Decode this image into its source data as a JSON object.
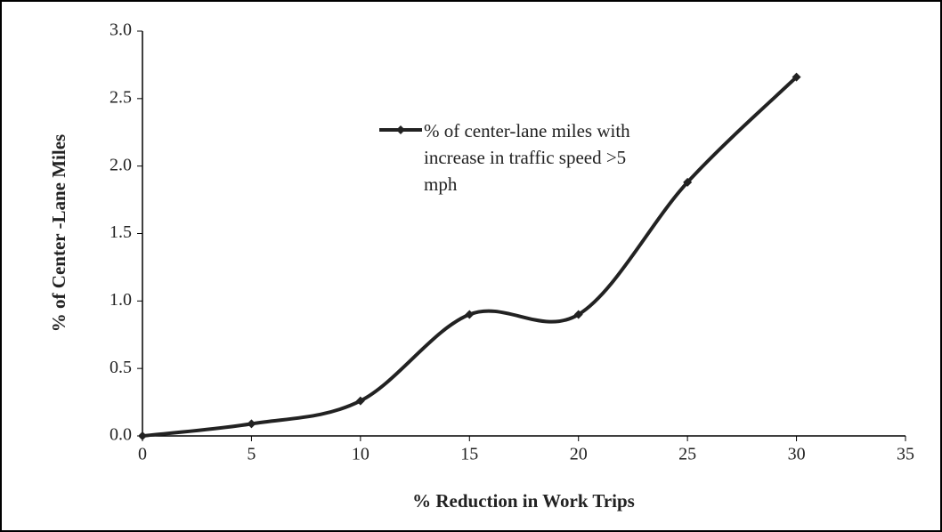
{
  "chart_data": {
    "type": "line",
    "x_label": "% Reduction in Work Trips",
    "y_label": "% of Center -Lane Miles",
    "x": [
      0,
      5,
      10,
      15,
      20,
      25,
      30
    ],
    "series": [
      {
        "name": "% of center-lane miles with increase in traffic speed >5 mph",
        "color": "#222222",
        "values": [
          0,
          0.09,
          0.26,
          0.9,
          0.9,
          1.88,
          2.66
        ]
      }
    ],
    "smooth": true,
    "xlim": [
      0,
      35
    ],
    "xticks": [
      0,
      5,
      10,
      15,
      20,
      25,
      30,
      35
    ],
    "ylim": [
      0,
      3
    ],
    "yticks": [
      {
        "value": 0,
        "label": "0.0"
      },
      {
        "value": 0.5,
        "label": "0.5"
      },
      {
        "value": 1,
        "label": "1.0"
      },
      {
        "value": 1.5,
        "label": "1.5"
      },
      {
        "value": 2,
        "label": "2.0"
      },
      {
        "value": 2.5,
        "label": "2.5"
      },
      {
        "value": 3,
        "label": "3.0"
      }
    ],
    "grid": false
  }
}
